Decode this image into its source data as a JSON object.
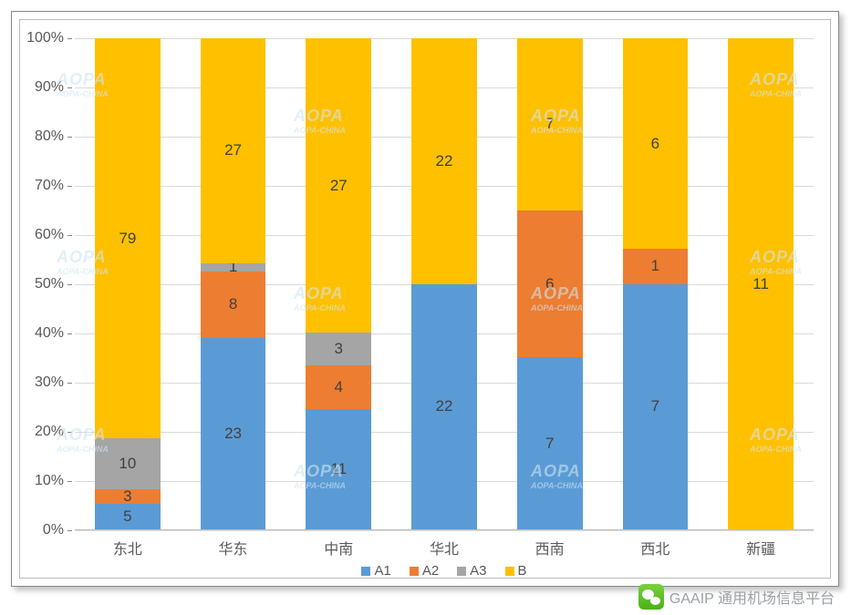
{
  "chart": {
    "type": "stacked-bar-100",
    "background_color": "#ffffff",
    "grid_color": "#d9d9d9",
    "axis_color": "#bfbfbf",
    "tick_color": "#888888",
    "label_color": "#595959",
    "value_label_color": "#404040",
    "value_label_fontsize": 17,
    "axis_fontsize": 16,
    "ylim": [
      0,
      100
    ],
    "ytick_step": 10,
    "ytick_labels": [
      "0%",
      "10%",
      "20%",
      "30%",
      "40%",
      "50%",
      "60%",
      "70%",
      "80%",
      "90%",
      "100%"
    ],
    "bar_width_ratio": 0.62,
    "categories": [
      "东北",
      "华东",
      "中南",
      "华北",
      "西南",
      "西北",
      "新疆"
    ],
    "series": [
      {
        "name": "A1",
        "color": "#5b9bd5"
      },
      {
        "name": "A2",
        "color": "#ed7d31"
      },
      {
        "name": "A3",
        "color": "#a5a5a5"
      },
      {
        "name": "B",
        "color": "#ffc000"
      }
    ],
    "values": {
      "A1": [
        5,
        23,
        11,
        22,
        7,
        7,
        0
      ],
      "A2": [
        3,
        8,
        4,
        0,
        6,
        1,
        0
      ],
      "A3": [
        10,
        1,
        3,
        0,
        0,
        0,
        0
      ],
      "B": [
        79,
        27,
        27,
        22,
        7,
        6,
        11
      ]
    },
    "legend_position": "bottom-center"
  },
  "watermark": {
    "text": "AOPA",
    "sub": "AOPA-CHINA"
  },
  "footer": {
    "text": "GAAIP 通用机场信息平台"
  }
}
